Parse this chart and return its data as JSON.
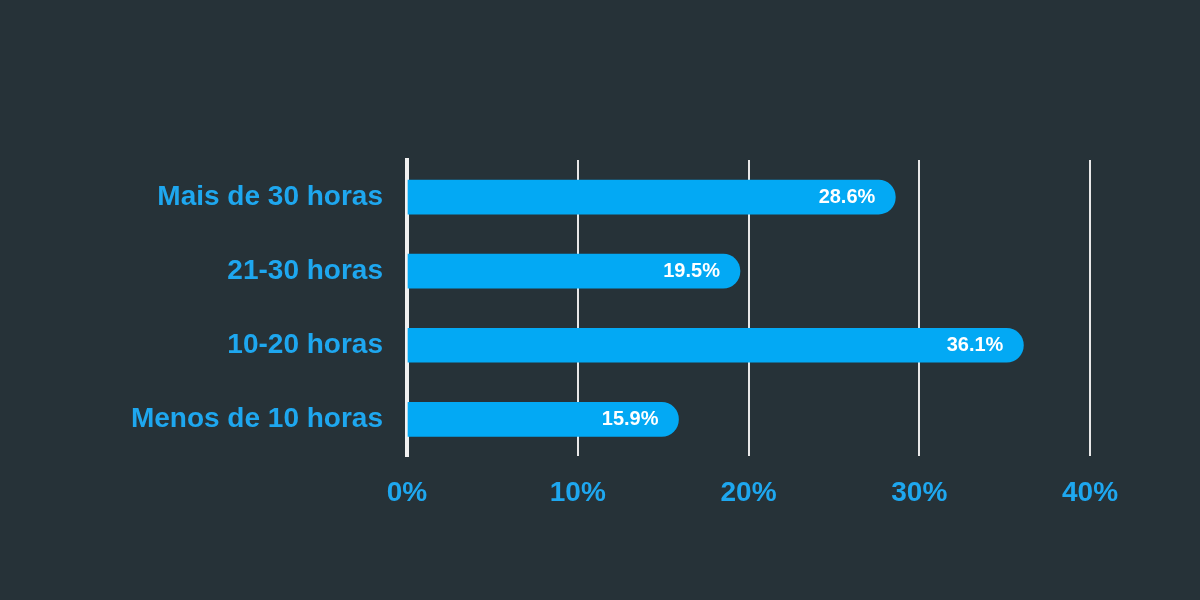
{
  "chart_data": {
    "type": "bar",
    "orientation": "horizontal",
    "categories": [
      "Mais de 30 horas",
      "21-30 horas",
      "10-20 horas",
      "Menos de 10 horas"
    ],
    "values": [
      28.6,
      19.5,
      36.1,
      15.9
    ],
    "value_labels": [
      "28.6%",
      "19.5%",
      "36.1%",
      "15.9%"
    ],
    "color": "#03a9f4",
    "xlim": [
      0,
      40
    ],
    "xticks": [
      {
        "value": 0,
        "label": "0%"
      },
      {
        "value": 10,
        "label": "10%"
      },
      {
        "value": 20,
        "label": "20%"
      },
      {
        "value": 30,
        "label": "30%"
      },
      {
        "value": 40,
        "label": "40%"
      }
    ],
    "grid": "x"
  }
}
